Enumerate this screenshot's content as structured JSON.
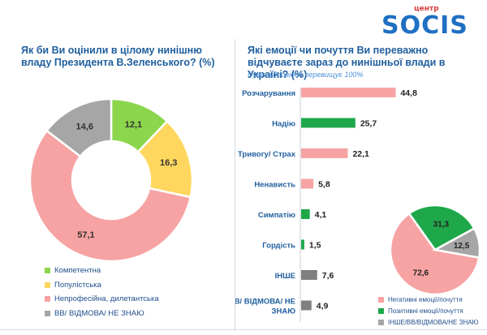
{
  "logo": {
    "top_text": "центр",
    "main_text": "SOCIS"
  },
  "left_title": "Як би Ви оцінили в цілому нинішню владу Президента В.Зеленського? (%)",
  "right_title": "Які емоції чи почуття Ви переважно відчуваєте зараз до нинішньої влади в Україні? (%)",
  "right_note": "Сума відповідей перевищує 100%",
  "chart_data": [
    {
      "type": "pie",
      "title": "Як би Ви оцінили в цілому нинішню владу Президента В.Зеленського? (%)",
      "categories": [
        "Компетентна",
        "Популістська",
        "Непрофесійна, дилетантська",
        "ВВ/ ВІДМОВА/ НЕ ЗНАЮ"
      ],
      "values": [
        12.1,
        16.3,
        57.1,
        14.6
      ],
      "colors": [
        "#8bd64c",
        "#ffd75e",
        "#f7a3a3",
        "#a6a6a6"
      ],
      "legend_position": "bottom-left",
      "donut": true
    },
    {
      "type": "bar",
      "orientation": "horizontal",
      "title": "Які емоції чи почуття Ви переважно відчуваєте зараз до нинішньої влади в Україні? (%)",
      "categories": [
        "Розчарування",
        "Надію",
        "Тривогу/ Страх",
        "Ненависть",
        "Симпатію",
        "Гордість",
        "ІНШЕ",
        "ВВ/ ВІДМОВА/ НЕ ЗНАЮ"
      ],
      "values": [
        44.8,
        25.7,
        22.1,
        5.8,
        4.1,
        1.5,
        7.6,
        4.9
      ],
      "colors": [
        "#f7a3a3",
        "#1ea84a",
        "#f7a3a3",
        "#f7a3a3",
        "#1ea84a",
        "#1ea84a",
        "#7f7f7f",
        "#7f7f7f"
      ],
      "xlim": [
        0,
        50
      ]
    },
    {
      "type": "pie",
      "categories": [
        "Негативні емоції/почуття",
        "Позитивні емоції/почуття",
        "ІНШЕ/ВВ/ВІДМОВА/НЕ ЗНАЮ"
      ],
      "values": [
        72.6,
        31.3,
        12.5
      ],
      "colors": [
        "#f7a3a3",
        "#1ea84a",
        "#a6a6a6"
      ],
      "legend_position": "bottom-right"
    }
  ]
}
